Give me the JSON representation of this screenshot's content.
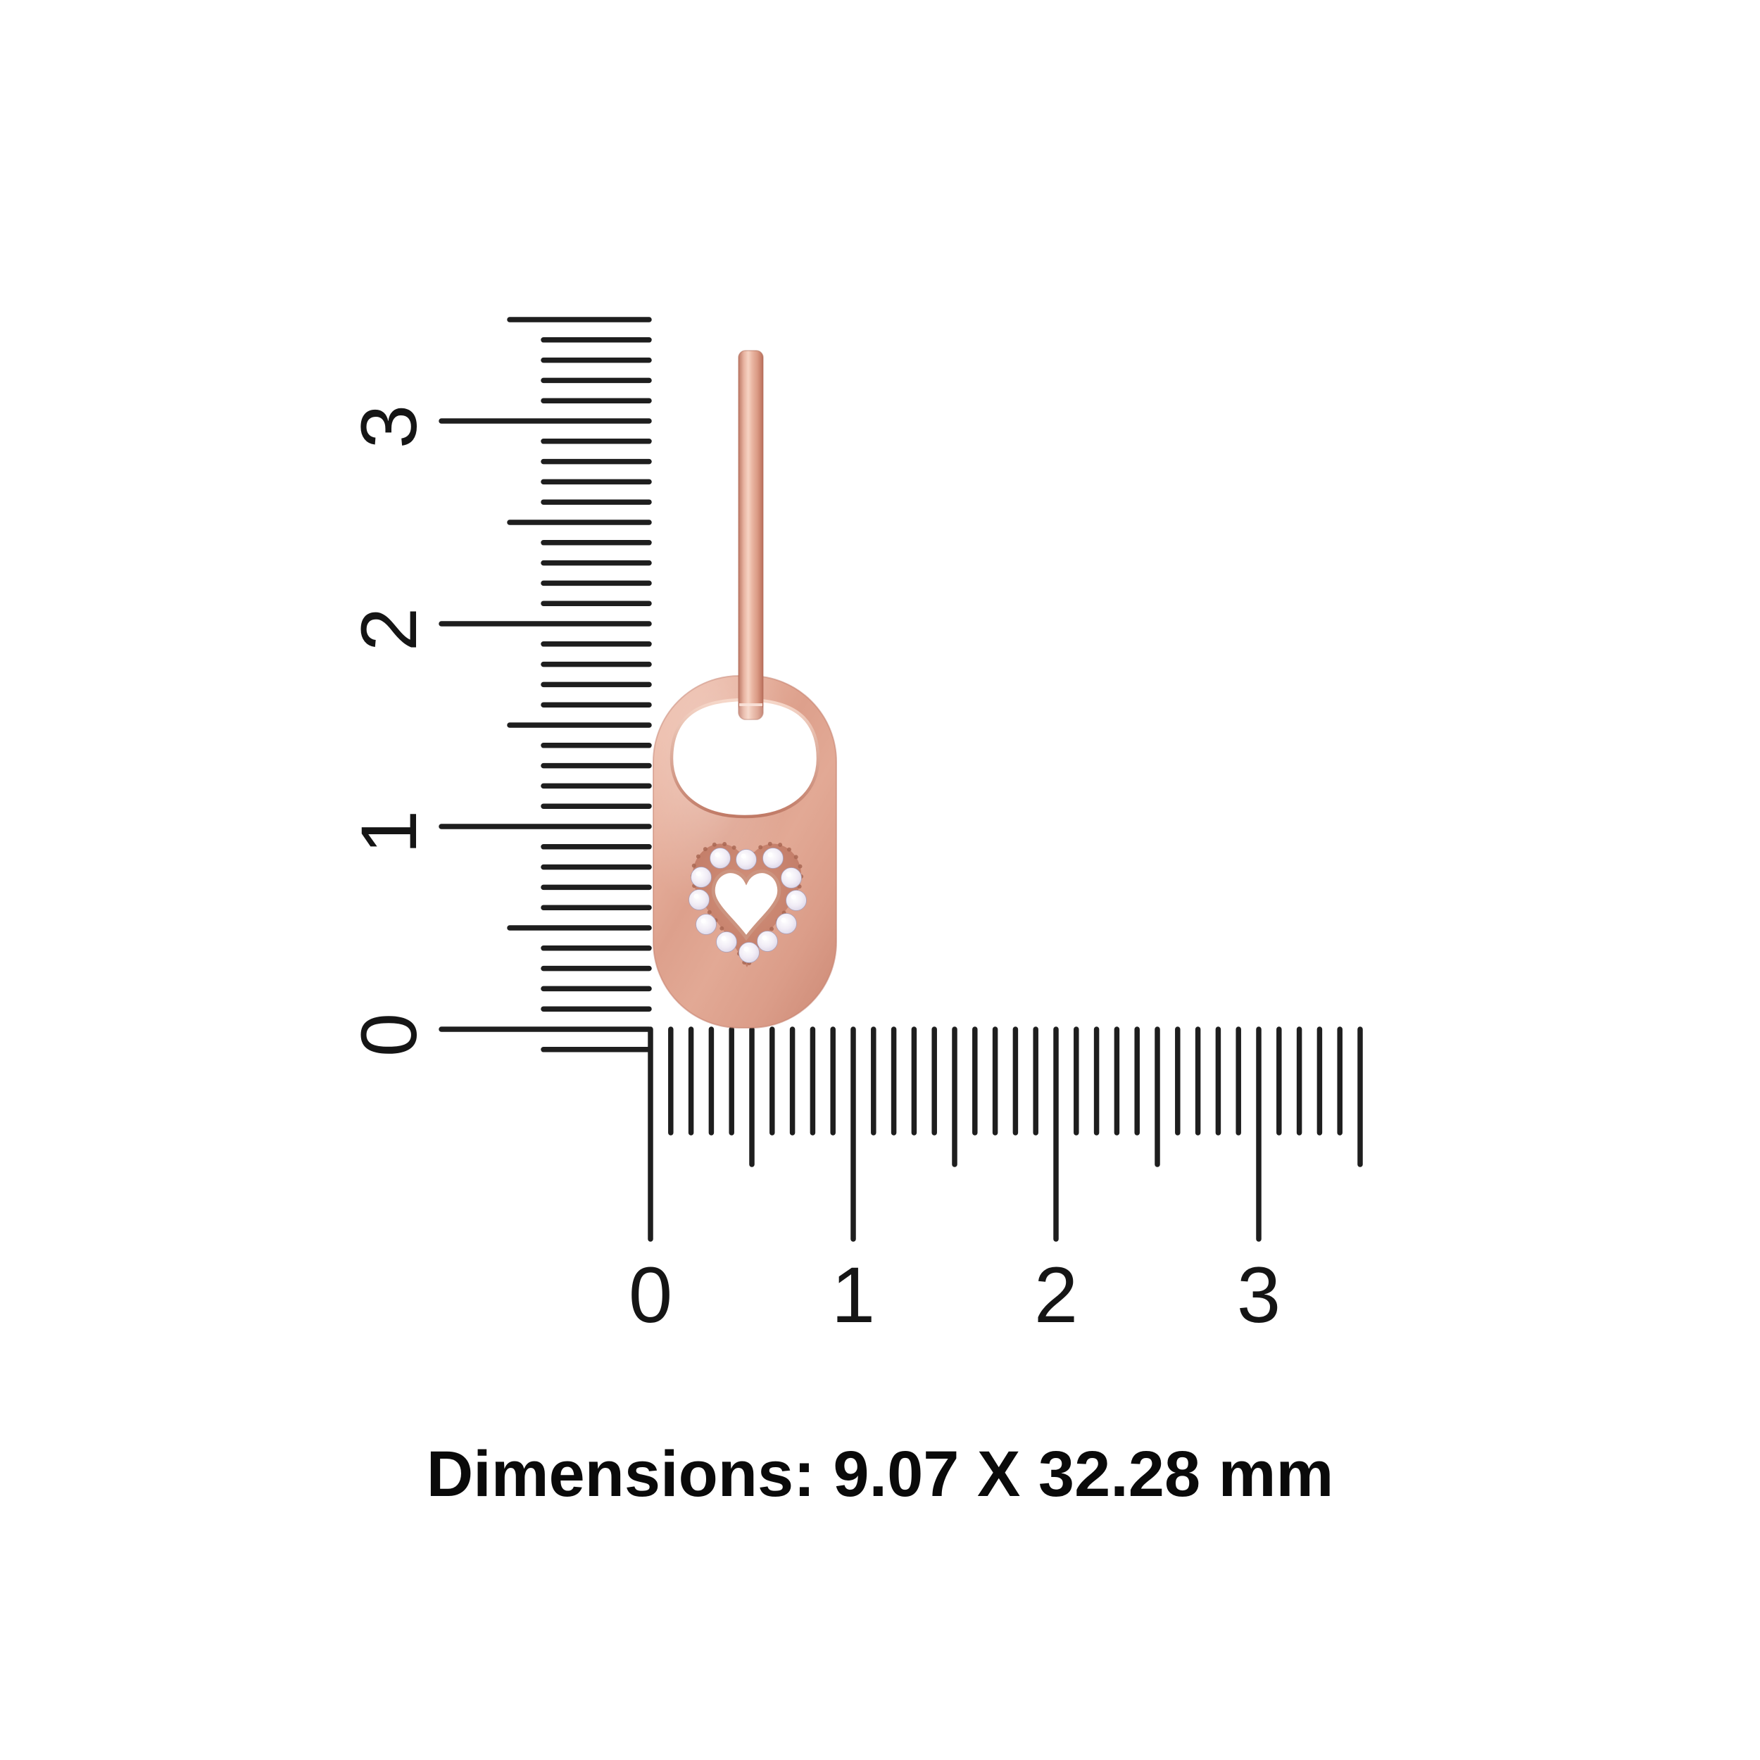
{
  "page": {
    "background": "#ffffff"
  },
  "caption": {
    "text": "Dimensions: 9.07 X 32.28 mm"
  },
  "dimensions": {
    "width_mm": "9.07",
    "height_mm": "32.28",
    "unit": "mm"
  },
  "rulers": {
    "tick_color": "#1e1e1e",
    "vertical_labels": [
      "0",
      "1",
      "2",
      "3"
    ],
    "horizontal_labels": [
      "0",
      "1",
      "2",
      "3"
    ]
  },
  "earring": {
    "subject": "rose-gold tag earring with pave diamond heart",
    "stone_count": 12,
    "colors": {
      "metal_light": "#f6d3c3",
      "metal_mid": "#e3a894",
      "metal_deep": "#cd8a76",
      "metal_edge": "#b96f5c",
      "pave_bed": "#c77e68",
      "stone": "#f1edf6",
      "stone_shadow": "#bfb8cf",
      "heart_rim": "#cc9480"
    }
  }
}
